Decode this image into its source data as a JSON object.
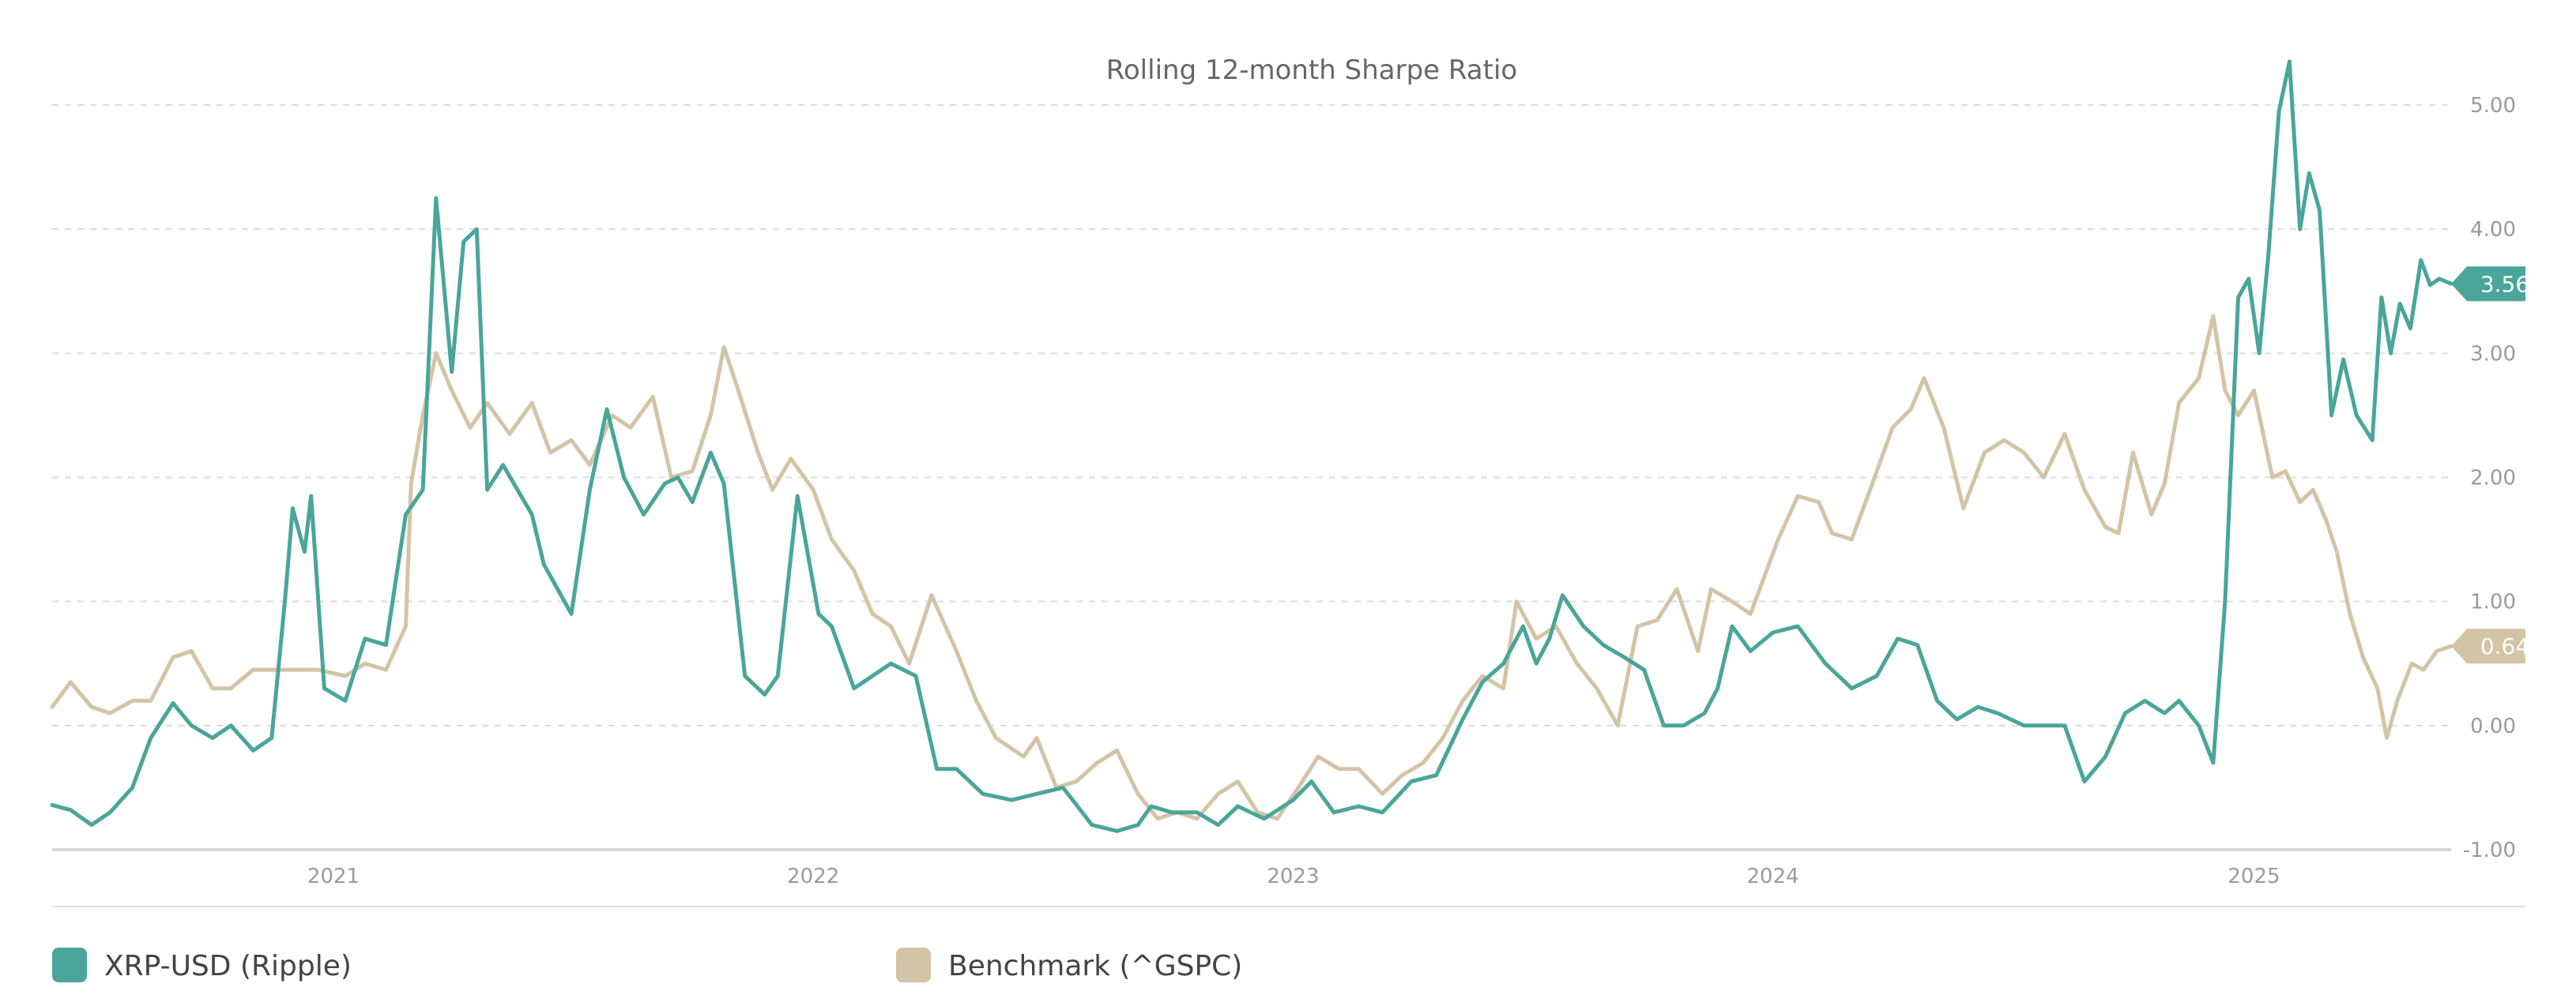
{
  "chart_data": {
    "type": "line",
    "title": "Rolling 12-month Sharpe Ratio",
    "xlabel": "",
    "ylabel": "",
    "x_range": [
      "2020-06-01",
      "2025-05-31"
    ],
    "ylim": [
      -1,
      5
    ],
    "yticks": [
      5,
      4,
      3,
      2,
      1,
      0,
      -1
    ],
    "ytick_labels": [
      "5.00",
      "4.00",
      "3.00",
      "2.00",
      "1.00",
      "0.00",
      "-1.00"
    ],
    "xticks": [
      "2021-01-01",
      "2022-01-01",
      "2023-01-01",
      "2024-01-01",
      "2025-01-01"
    ],
    "xtick_labels": [
      "2021",
      "2022",
      "2023",
      "2024",
      "2025"
    ],
    "grid": true,
    "legend_position": "bottom",
    "series": [
      {
        "name": "XRP-USD (Ripple)",
        "color": "#4aa59a",
        "end_label": "3.56",
        "points": [
          [
            "2020-06-01",
            -0.64
          ],
          [
            "2020-06-15",
            -0.68
          ],
          [
            "2020-07-01",
            -0.8
          ],
          [
            "2020-07-15",
            -0.7
          ],
          [
            "2020-08-01",
            -0.5
          ],
          [
            "2020-08-15",
            -0.1
          ],
          [
            "2020-09-01",
            0.18
          ],
          [
            "2020-09-15",
            0.0
          ],
          [
            "2020-10-01",
            -0.1
          ],
          [
            "2020-10-15",
            0.0
          ],
          [
            "2020-11-01",
            -0.2
          ],
          [
            "2020-11-15",
            -0.1
          ],
          [
            "2020-11-25",
            1.0
          ],
          [
            "2020-12-01",
            1.75
          ],
          [
            "2020-12-10",
            1.4
          ],
          [
            "2020-12-15",
            1.85
          ],
          [
            "2020-12-25",
            0.3
          ],
          [
            "2021-01-10",
            0.2
          ],
          [
            "2021-01-25",
            0.7
          ],
          [
            "2021-02-10",
            0.65
          ],
          [
            "2021-02-25",
            1.7
          ],
          [
            "2021-03-10",
            1.9
          ],
          [
            "2021-03-20",
            4.25
          ],
          [
            "2021-04-01",
            2.85
          ],
          [
            "2021-04-10",
            3.9
          ],
          [
            "2021-04-20",
            4.0
          ],
          [
            "2021-04-28",
            1.9
          ],
          [
            "2021-05-10",
            2.1
          ],
          [
            "2021-06-01",
            1.7
          ],
          [
            "2021-06-10",
            1.3
          ],
          [
            "2021-07-01",
            0.9
          ],
          [
            "2021-07-15",
            1.9
          ],
          [
            "2021-07-28",
            2.55
          ],
          [
            "2021-08-10",
            2.0
          ],
          [
            "2021-08-25",
            1.7
          ],
          [
            "2021-09-10",
            1.95
          ],
          [
            "2021-09-20",
            2.0
          ],
          [
            "2021-10-01",
            1.8
          ],
          [
            "2021-10-15",
            2.2
          ],
          [
            "2021-10-25",
            1.95
          ],
          [
            "2021-11-10",
            0.4
          ],
          [
            "2021-11-25",
            0.25
          ],
          [
            "2021-12-05",
            0.4
          ],
          [
            "2021-12-20",
            1.85
          ],
          [
            "2022-01-05",
            0.9
          ],
          [
            "2022-01-15",
            0.8
          ],
          [
            "2022-02-01",
            0.3
          ],
          [
            "2022-02-15",
            0.4
          ],
          [
            "2022-03-01",
            0.5
          ],
          [
            "2022-03-20",
            0.4
          ],
          [
            "2022-04-05",
            -0.35
          ],
          [
            "2022-04-20",
            -0.35
          ],
          [
            "2022-05-10",
            -0.55
          ],
          [
            "2022-06-01",
            -0.6
          ],
          [
            "2022-06-20",
            -0.55
          ],
          [
            "2022-07-10",
            -0.5
          ],
          [
            "2022-08-01",
            -0.8
          ],
          [
            "2022-08-20",
            -0.85
          ],
          [
            "2022-09-05",
            -0.8
          ],
          [
            "2022-09-15",
            -0.65
          ],
          [
            "2022-10-01",
            -0.7
          ],
          [
            "2022-10-20",
            -0.7
          ],
          [
            "2022-11-05",
            -0.8
          ],
          [
            "2022-11-20",
            -0.65
          ],
          [
            "2022-12-10",
            -0.75
          ],
          [
            "2023-01-01",
            -0.6
          ],
          [
            "2023-01-15",
            -0.45
          ],
          [
            "2023-02-01",
            -0.7
          ],
          [
            "2023-02-20",
            -0.65
          ],
          [
            "2023-03-10",
            -0.7
          ],
          [
            "2023-04-01",
            -0.45
          ],
          [
            "2023-04-20",
            -0.4
          ],
          [
            "2023-05-10",
            0.05
          ],
          [
            "2023-05-25",
            0.35
          ],
          [
            "2023-06-10",
            0.5
          ],
          [
            "2023-06-25",
            0.8
          ],
          [
            "2023-07-05",
            0.5
          ],
          [
            "2023-07-15",
            0.7
          ],
          [
            "2023-07-25",
            1.05
          ],
          [
            "2023-08-10",
            0.8
          ],
          [
            "2023-08-25",
            0.65
          ],
          [
            "2023-09-10",
            0.55
          ],
          [
            "2023-09-25",
            0.45
          ],
          [
            "2023-10-10",
            0.0
          ],
          [
            "2023-10-25",
            0.0
          ],
          [
            "2023-11-10",
            0.1
          ],
          [
            "2023-11-20",
            0.3
          ],
          [
            "2023-12-01",
            0.8
          ],
          [
            "2023-12-15",
            0.6
          ],
          [
            "2024-01-01",
            0.75
          ],
          [
            "2024-01-20",
            0.8
          ],
          [
            "2024-02-10",
            0.5
          ],
          [
            "2024-03-01",
            0.3
          ],
          [
            "2024-03-20",
            0.4
          ],
          [
            "2024-04-05",
            0.7
          ],
          [
            "2024-04-20",
            0.65
          ],
          [
            "2024-05-05",
            0.2
          ],
          [
            "2024-05-20",
            0.05
          ],
          [
            "2024-06-05",
            0.15
          ],
          [
            "2024-06-20",
            0.1
          ],
          [
            "2024-07-10",
            0.0
          ],
          [
            "2024-07-25",
            0.0
          ],
          [
            "2024-08-10",
            0.0
          ],
          [
            "2024-08-25",
            -0.45
          ],
          [
            "2024-09-10",
            -0.25
          ],
          [
            "2024-09-25",
            0.1
          ],
          [
            "2024-10-10",
            0.2
          ],
          [
            "2024-10-25",
            0.1
          ],
          [
            "2024-11-05",
            0.2
          ],
          [
            "2024-11-20",
            0.0
          ],
          [
            "2024-12-01",
            -0.3
          ],
          [
            "2024-12-10",
            1.0
          ],
          [
            "2024-12-20",
            3.45
          ],
          [
            "2024-12-28",
            3.6
          ],
          [
            "2025-01-05",
            3.0
          ],
          [
            "2025-01-12",
            3.8
          ],
          [
            "2025-01-20",
            4.95
          ],
          [
            "2025-01-28",
            5.35
          ],
          [
            "2025-02-05",
            4.0
          ],
          [
            "2025-02-12",
            4.45
          ],
          [
            "2025-02-20",
            4.15
          ],
          [
            "2025-03-01",
            2.5
          ],
          [
            "2025-03-10",
            2.95
          ],
          [
            "2025-03-20",
            2.5
          ],
          [
            "2025-04-01",
            2.3
          ],
          [
            "2025-04-08",
            3.45
          ],
          [
            "2025-04-15",
            3.0
          ],
          [
            "2025-04-22",
            3.4
          ],
          [
            "2025-04-30",
            3.2
          ],
          [
            "2025-05-08",
            3.75
          ],
          [
            "2025-05-15",
            3.55
          ],
          [
            "2025-05-22",
            3.6
          ],
          [
            "2025-05-31",
            3.56
          ]
        ]
      },
      {
        "name": "Benchmark (^GSPC)",
        "color": "#d4c4a6",
        "end_label": "0.64",
        "points": [
          [
            "2020-06-01",
            0.15
          ],
          [
            "2020-06-15",
            0.35
          ],
          [
            "2020-07-01",
            0.15
          ],
          [
            "2020-07-15",
            0.1
          ],
          [
            "2020-08-01",
            0.2
          ],
          [
            "2020-08-15",
            0.2
          ],
          [
            "2020-09-01",
            0.55
          ],
          [
            "2020-09-15",
            0.6
          ],
          [
            "2020-10-01",
            0.3
          ],
          [
            "2020-10-15",
            0.3
          ],
          [
            "2020-11-01",
            0.45
          ],
          [
            "2020-11-15",
            0.45
          ],
          [
            "2020-12-01",
            0.45
          ],
          [
            "2020-12-20",
            0.45
          ],
          [
            "2021-01-10",
            0.4
          ],
          [
            "2021-01-25",
            0.5
          ],
          [
            "2021-02-10",
            0.45
          ],
          [
            "2021-02-25",
            0.8
          ],
          [
            "2021-03-01",
            1.95
          ],
          [
            "2021-03-10",
            2.5
          ],
          [
            "2021-03-20",
            3.0
          ],
          [
            "2021-04-01",
            2.7
          ],
          [
            "2021-04-15",
            2.4
          ],
          [
            "2021-04-28",
            2.6
          ],
          [
            "2021-05-15",
            2.35
          ],
          [
            "2021-06-01",
            2.6
          ],
          [
            "2021-06-15",
            2.2
          ],
          [
            "2021-07-01",
            2.3
          ],
          [
            "2021-07-15",
            2.1
          ],
          [
            "2021-08-01",
            2.5
          ],
          [
            "2021-08-15",
            2.4
          ],
          [
            "2021-09-01",
            2.65
          ],
          [
            "2021-09-15",
            2.0
          ],
          [
            "2021-10-01",
            2.05
          ],
          [
            "2021-10-15",
            2.5
          ],
          [
            "2021-10-25",
            3.05
          ],
          [
            "2021-11-05",
            2.7
          ],
          [
            "2021-11-20",
            2.2
          ],
          [
            "2021-12-01",
            1.9
          ],
          [
            "2021-12-15",
            2.15
          ],
          [
            "2022-01-01",
            1.9
          ],
          [
            "2022-01-15",
            1.5
          ],
          [
            "2022-02-01",
            1.25
          ],
          [
            "2022-02-15",
            0.9
          ],
          [
            "2022-03-01",
            0.8
          ],
          [
            "2022-03-15",
            0.5
          ],
          [
            "2022-04-01",
            1.05
          ],
          [
            "2022-04-20",
            0.6
          ],
          [
            "2022-05-05",
            0.2
          ],
          [
            "2022-05-20",
            -0.1
          ],
          [
            "2022-06-10",
            -0.25
          ],
          [
            "2022-06-20",
            -0.1
          ],
          [
            "2022-07-05",
            -0.5
          ],
          [
            "2022-07-20",
            -0.45
          ],
          [
            "2022-08-05",
            -0.3
          ],
          [
            "2022-08-20",
            -0.2
          ],
          [
            "2022-09-05",
            -0.55
          ],
          [
            "2022-09-20",
            -0.75
          ],
          [
            "2022-10-05",
            -0.7
          ],
          [
            "2022-10-20",
            -0.75
          ],
          [
            "2022-11-05",
            -0.55
          ],
          [
            "2022-11-20",
            -0.45
          ],
          [
            "2022-12-05",
            -0.7
          ],
          [
            "2022-12-20",
            -0.75
          ],
          [
            "2023-01-05",
            -0.5
          ],
          [
            "2023-01-20",
            -0.25
          ],
          [
            "2023-02-05",
            -0.35
          ],
          [
            "2023-02-20",
            -0.35
          ],
          [
            "2023-03-10",
            -0.55
          ],
          [
            "2023-03-25",
            -0.4
          ],
          [
            "2023-04-10",
            -0.3
          ],
          [
            "2023-04-25",
            -0.1
          ],
          [
            "2023-05-10",
            0.2
          ],
          [
            "2023-05-25",
            0.4
          ],
          [
            "2023-06-10",
            0.3
          ],
          [
            "2023-06-20",
            1.0
          ],
          [
            "2023-07-05",
            0.7
          ],
          [
            "2023-07-20",
            0.8
          ],
          [
            "2023-08-05",
            0.5
          ],
          [
            "2023-08-20",
            0.3
          ],
          [
            "2023-09-05",
            0.0
          ],
          [
            "2023-09-20",
            0.8
          ],
          [
            "2023-10-05",
            0.85
          ],
          [
            "2023-10-20",
            1.1
          ],
          [
            "2023-11-05",
            0.6
          ],
          [
            "2023-11-15",
            1.1
          ],
          [
            "2023-12-01",
            1.0
          ],
          [
            "2023-12-15",
            0.9
          ],
          [
            "2024-01-05",
            1.5
          ],
          [
            "2024-01-20",
            1.85
          ],
          [
            "2024-02-05",
            1.8
          ],
          [
            "2024-02-15",
            1.55
          ],
          [
            "2024-03-01",
            1.5
          ],
          [
            "2024-03-15",
            1.9
          ],
          [
            "2024-04-01",
            2.4
          ],
          [
            "2024-04-15",
            2.55
          ],
          [
            "2024-04-25",
            2.8
          ],
          [
            "2024-05-10",
            2.4
          ],
          [
            "2024-05-25",
            1.75
          ],
          [
            "2024-06-10",
            2.2
          ],
          [
            "2024-06-25",
            2.3
          ],
          [
            "2024-07-10",
            2.2
          ],
          [
            "2024-07-25",
            2.0
          ],
          [
            "2024-08-10",
            2.35
          ],
          [
            "2024-08-25",
            1.9
          ],
          [
            "2024-09-10",
            1.6
          ],
          [
            "2024-09-20",
            1.55
          ],
          [
            "2024-10-01",
            2.2
          ],
          [
            "2024-10-15",
            1.7
          ],
          [
            "2024-10-25",
            1.95
          ],
          [
            "2024-11-05",
            2.6
          ],
          [
            "2024-11-20",
            2.8
          ],
          [
            "2024-12-01",
            3.3
          ],
          [
            "2024-12-10",
            2.7
          ],
          [
            "2024-12-20",
            2.5
          ],
          [
            "2025-01-01",
            2.7
          ],
          [
            "2025-01-15",
            2.0
          ],
          [
            "2025-01-25",
            2.05
          ],
          [
            "2025-02-05",
            1.8
          ],
          [
            "2025-02-15",
            1.9
          ],
          [
            "2025-02-25",
            1.65
          ],
          [
            "2025-03-05",
            1.4
          ],
          [
            "2025-03-15",
            0.9
          ],
          [
            "2025-03-25",
            0.55
          ],
          [
            "2025-04-05",
            0.3
          ],
          [
            "2025-04-12",
            -0.1
          ],
          [
            "2025-04-20",
            0.2
          ],
          [
            "2025-05-01",
            0.5
          ],
          [
            "2025-05-10",
            0.45
          ],
          [
            "2025-05-20",
            0.6
          ],
          [
            "2025-05-31",
            0.64
          ]
        ]
      }
    ]
  }
}
